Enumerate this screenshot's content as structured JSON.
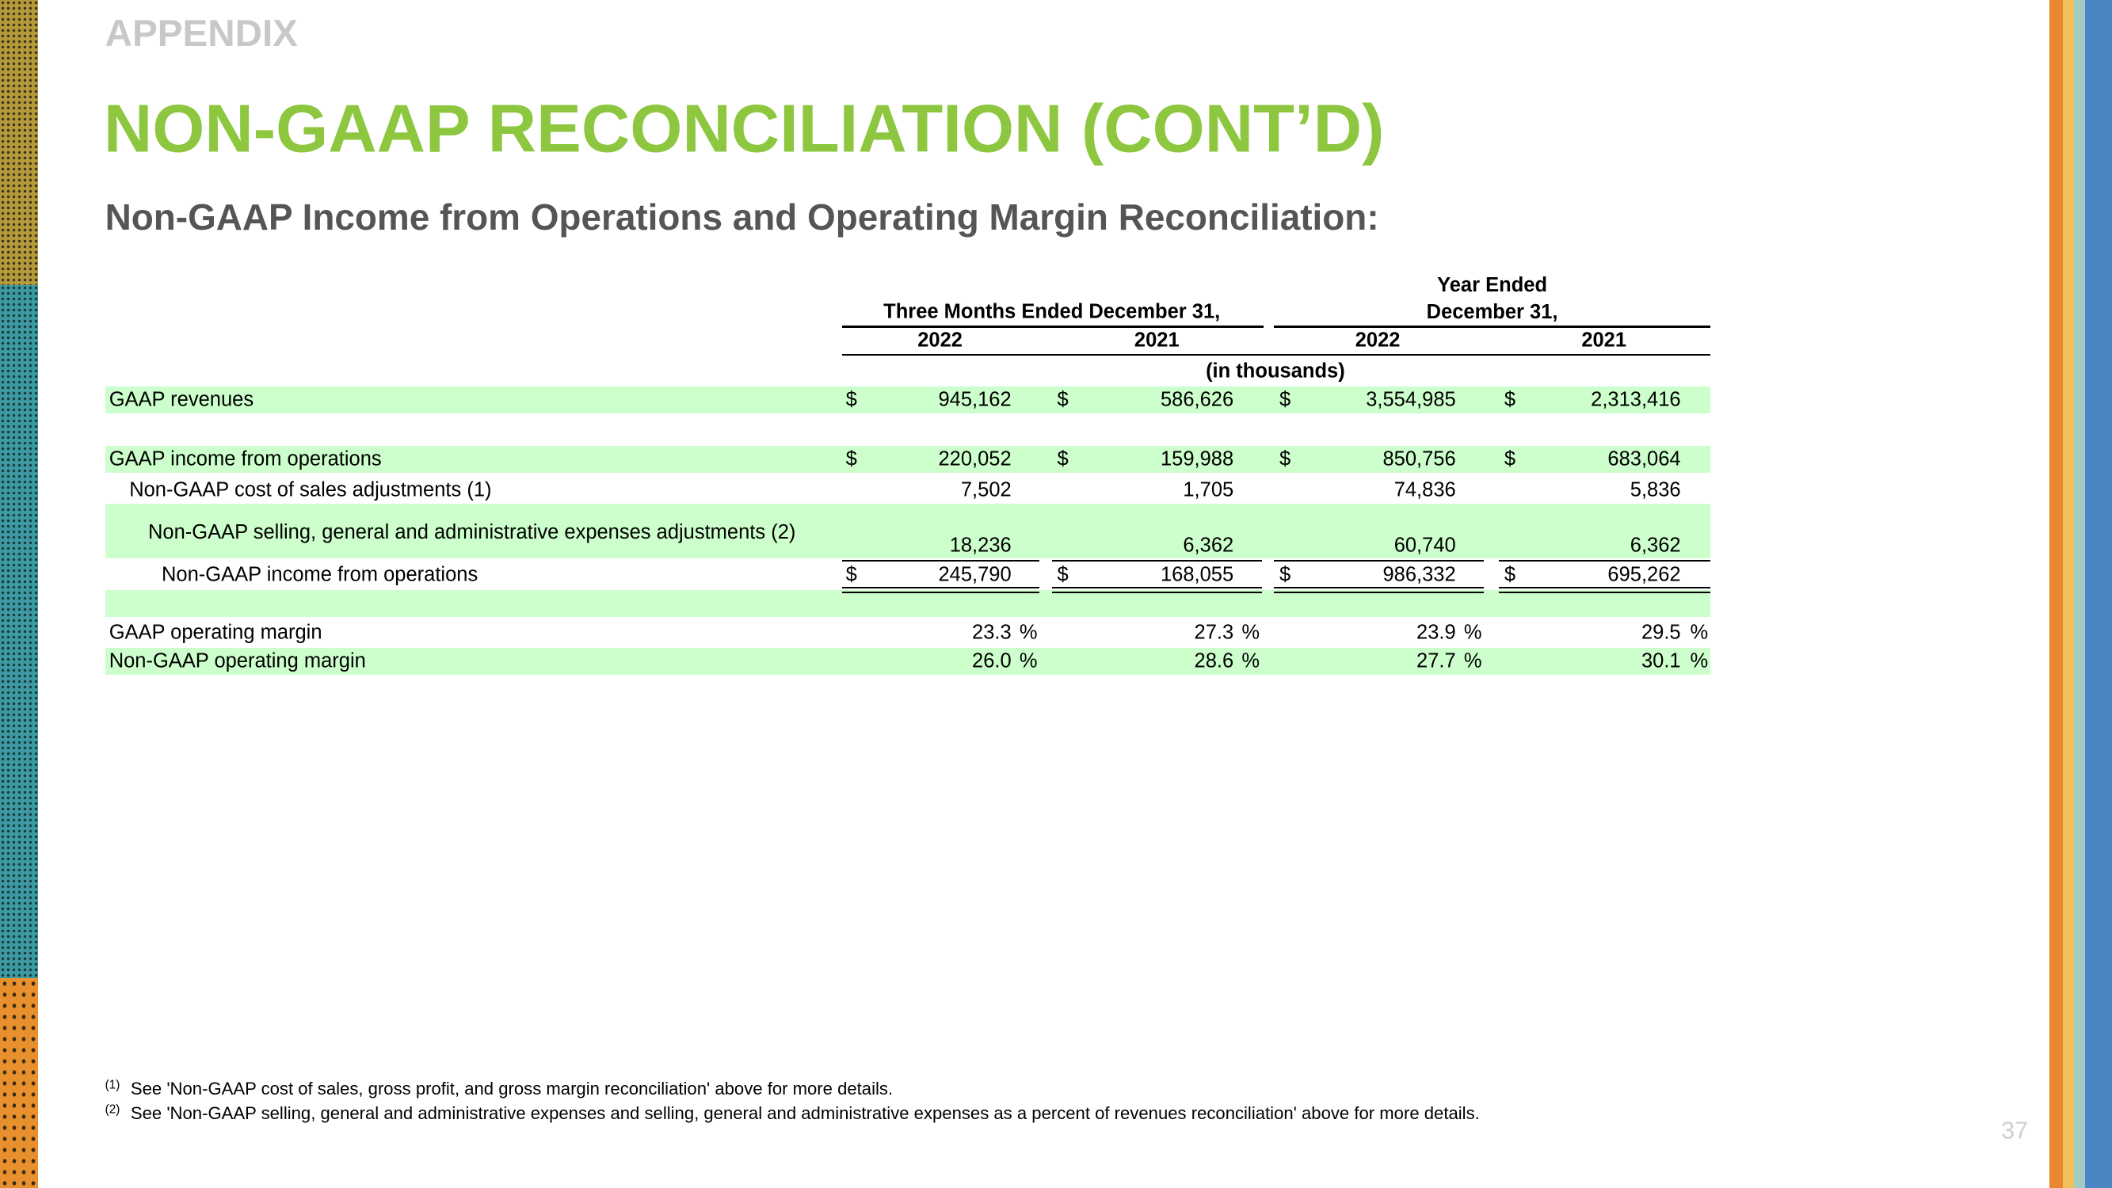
{
  "section": "APPENDIX",
  "title": "NON-GAAP RECONCILIATION (CONT’D)",
  "subtitle": "Non-GAAP Income from Operations and Operating Margin Reconciliation:",
  "table": {
    "column_groups": [
      "Three Months Ended December 31,",
      "Year Ended December 31,"
    ],
    "years": [
      "2022",
      "2021",
      "2022",
      "2021"
    ],
    "units": "(in thousands)",
    "rows": [
      {
        "label": "GAAP revenues",
        "currency": "$",
        "values": [
          "945,162",
          "586,626",
          "3,554,985",
          "2,313,416"
        ]
      },
      {
        "label": "GAAP income from operations",
        "currency": "$",
        "values": [
          "220,052",
          "159,988",
          "850,756",
          "683,064"
        ]
      },
      {
        "label": "Non-GAAP cost of sales adjustments (1)",
        "values": [
          "7,502",
          "1,705",
          "74,836",
          "5,836"
        ]
      },
      {
        "label": "Non-GAAP selling, general and administrative expenses adjustments (2)",
        "values": [
          "18,236",
          "6,362",
          "60,740",
          "6,362"
        ]
      },
      {
        "label": "Non-GAAP income from operations",
        "currency": "$",
        "values": [
          "245,790",
          "168,055",
          "986,332",
          "695,262"
        ]
      },
      {
        "label": "GAAP operating margin",
        "unit": "%",
        "values": [
          "23.3",
          "27.3",
          "23.9",
          "29.5"
        ]
      },
      {
        "label": "Non-GAAP operating margin",
        "unit": "%",
        "values": [
          "26.0",
          "28.6",
          "27.7",
          "30.1"
        ]
      }
    ]
  },
  "footnotes": [
    {
      "marker": "(1)",
      "text": "See 'Non-GAAP cost of sales, gross profit, and gross margin reconciliation' above for more details."
    },
    {
      "marker": "(2)",
      "text": "See 'Non-GAAP selling, general and administrative expenses and selling, general and administrative expenses as a percent of revenues reconciliation' above for more details."
    }
  ],
  "page_number": "37"
}
